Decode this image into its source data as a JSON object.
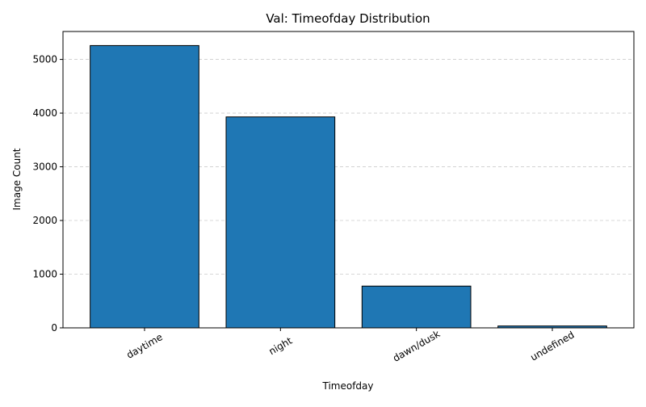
{
  "chart_data": {
    "type": "bar",
    "title": "Val: Timeofday Distribution",
    "xlabel": "Timeofday",
    "ylabel": "Image Count",
    "categories": [
      "daytime",
      "night",
      "dawn/dusk",
      "undefined"
    ],
    "values": [
      5258,
      3929,
      778,
      35
    ],
    "ylim": [
      0,
      5520
    ],
    "yticks": [
      0,
      1000,
      2000,
      3000,
      4000,
      5000
    ],
    "grid": "y-dashed",
    "colors": {
      "bar_fill": "#1f77b4",
      "bar_edge": "#000000",
      "grid": "#cccccc"
    }
  }
}
